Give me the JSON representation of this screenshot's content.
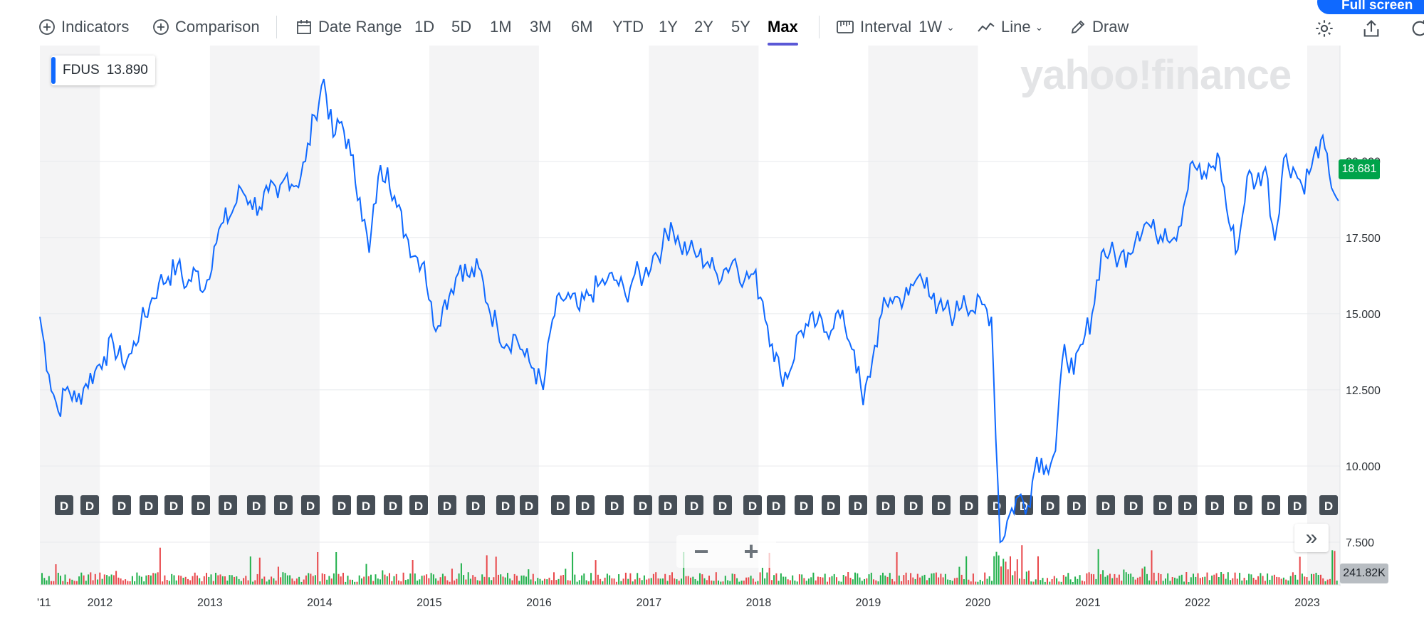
{
  "toolbar": {
    "indicators_label": "Indicators",
    "comparison_label": "Comparison",
    "date_range_label": "Date Range",
    "ranges": [
      "1D",
      "5D",
      "1M",
      "3M",
      "6M",
      "YTD",
      "1Y",
      "2Y",
      "5Y",
      "Max"
    ],
    "active_range": "Max",
    "interval_label": "Interval",
    "interval_value": "1W",
    "chart_type_label": "Line",
    "draw_label": "Draw",
    "fullscreen_label": "Full screen"
  },
  "legend": {
    "symbol": "FDUS",
    "value": "13.890"
  },
  "watermark": "yahoo!finance",
  "current_price_badge": "18.681",
  "volume_badge": "241.82K",
  "dividend_marker_label": "D",
  "colors": {
    "line": "#0f69ff",
    "price_badge": "#00a34a",
    "vol_up": "#22b14c",
    "vol_down": "#e8474a"
  },
  "chart_data": {
    "type": "line",
    "title": "",
    "xlabel": "",
    "ylabel": "",
    "x_start": "2011-06-15",
    "x_end": "2023-04-20",
    "ylim": [
      6.1,
      23.8
    ],
    "y_ticks": [
      7.5,
      10,
      12.5,
      15,
      17.5,
      20
    ],
    "y_tick_labels": [
      "7.500",
      "10.000",
      "12.500",
      "15.000",
      "17.500",
      "20.000"
    ],
    "x_tick_labels": [
      "'11",
      "2012",
      "2013",
      "2014",
      "2015",
      "2016",
      "2017",
      "2018",
      "2019",
      "2020",
      "2021",
      "2022",
      "2023"
    ],
    "x_tick_dates": [
      "2011-06-15",
      "2012-01-01",
      "2013-01-01",
      "2014-01-01",
      "2015-01-01",
      "2016-01-01",
      "2017-01-01",
      "2018-01-01",
      "2019-01-01",
      "2020-01-01",
      "2021-01-01",
      "2022-01-01",
      "2023-01-01"
    ],
    "grid": true,
    "series": [
      {
        "x": [
          "2011-06-15",
          "2011-07-15",
          "2011-08-15",
          "2011-09-15",
          "2011-10-15",
          "2011-11-15",
          "2011-12-15",
          "2012-01-15",
          "2012-02-15",
          "2012-03-15",
          "2012-04-15",
          "2012-05-15",
          "2012-06-15",
          "2012-07-15",
          "2012-08-15",
          "2012-09-15",
          "2012-10-15",
          "2012-11-15",
          "2012-12-15",
          "2013-01-15",
          "2013-02-15",
          "2013-03-15",
          "2013-04-15",
          "2013-05-15",
          "2013-06-15",
          "2013-07-15",
          "2013-08-15",
          "2013-09-15",
          "2013-10-15",
          "2013-11-15",
          "2013-12-15",
          "2014-01-15",
          "2014-02-15",
          "2014-03-15",
          "2014-04-15",
          "2014-05-15",
          "2014-06-15",
          "2014-07-15",
          "2014-08-15",
          "2014-09-15",
          "2014-10-15",
          "2014-11-15",
          "2014-12-15",
          "2015-01-15",
          "2015-02-15",
          "2015-03-15",
          "2015-04-15",
          "2015-05-15",
          "2015-06-15",
          "2015-07-15",
          "2015-08-15",
          "2015-09-15",
          "2015-10-15",
          "2015-11-15",
          "2015-12-15",
          "2016-01-15",
          "2016-02-15",
          "2016-03-15",
          "2016-04-15",
          "2016-05-15",
          "2016-06-15",
          "2016-07-15",
          "2016-08-15",
          "2016-09-15",
          "2016-10-15",
          "2016-11-15",
          "2016-12-15",
          "2017-01-15",
          "2017-02-15",
          "2017-03-15",
          "2017-04-15",
          "2017-05-15",
          "2017-06-15",
          "2017-07-15",
          "2017-08-15",
          "2017-09-15",
          "2017-10-15",
          "2017-11-15",
          "2017-12-15",
          "2018-01-15",
          "2018-02-15",
          "2018-03-15",
          "2018-04-15",
          "2018-05-15",
          "2018-06-15",
          "2018-07-15",
          "2018-08-15",
          "2018-09-15",
          "2018-10-15",
          "2018-11-15",
          "2018-12-15",
          "2019-01-15",
          "2019-02-15",
          "2019-03-15",
          "2019-04-15",
          "2019-05-15",
          "2019-06-15",
          "2019-07-15",
          "2019-08-15",
          "2019-09-15",
          "2019-10-15",
          "2019-11-15",
          "2019-12-15",
          "2020-01-15",
          "2020-02-15",
          "2020-03-15",
          "2020-04-15",
          "2020-05-15",
          "2020-06-15",
          "2020-07-15",
          "2020-08-15",
          "2020-09-15",
          "2020-10-15",
          "2020-11-15",
          "2020-12-15",
          "2021-01-15",
          "2021-02-15",
          "2021-03-15",
          "2021-04-15",
          "2021-05-15",
          "2021-06-15",
          "2021-07-15",
          "2021-08-15",
          "2021-09-15",
          "2021-10-15",
          "2021-11-15",
          "2021-12-15",
          "2022-01-15",
          "2022-02-15",
          "2022-03-15",
          "2022-04-15",
          "2022-05-15",
          "2022-06-15",
          "2022-07-15",
          "2022-08-15",
          "2022-09-15",
          "2022-10-15",
          "2022-11-15",
          "2022-12-15",
          "2023-01-15",
          "2023-02-15",
          "2023-03-15",
          "2023-04-15"
        ],
        "values": [
          14.9,
          13.0,
          11.8,
          12.6,
          12.1,
          12.7,
          13.1,
          13.6,
          14.0,
          13.4,
          13.7,
          14.6,
          15.3,
          16.0,
          16.2,
          16.6,
          15.9,
          16.4,
          15.8,
          17.2,
          18.0,
          18.3,
          19.1,
          18.7,
          18.5,
          19.0,
          18.8,
          19.6,
          19.2,
          20.0,
          21.5,
          22.7,
          20.8,
          21.3,
          20.2,
          18.8,
          17.0,
          19.5,
          19.8,
          18.5,
          17.6,
          16.9,
          16.7,
          14.6,
          15.2,
          15.8,
          16.6,
          16.2,
          16.5,
          15.3,
          14.6,
          14.0,
          14.3,
          13.6,
          13.2,
          12.5,
          14.8,
          15.5,
          15.5,
          15.1,
          15.6,
          15.9,
          16.1,
          16.1,
          15.6,
          16.3,
          16.2,
          16.9,
          17.2,
          18.0,
          17.2,
          17.1,
          16.9,
          16.7,
          16.3,
          16.5,
          16.8,
          16.1,
          16.3,
          15.4,
          14.0,
          13.0,
          13.1,
          14.4,
          14.6,
          14.7,
          14.4,
          15.0,
          14.6,
          13.8,
          12.0,
          13.5,
          15.0,
          15.5,
          15.5,
          15.6,
          16.2,
          16.2,
          15.0,
          15.2,
          14.9,
          15.6,
          15.1,
          15.3,
          14.9,
          7.5,
          8.4,
          9.0,
          8.7,
          10.3,
          10.0,
          10.5,
          14.0,
          13.0,
          14.0,
          15.0,
          17.0,
          17.0,
          16.8,
          17.0,
          17.7,
          18.0,
          17.6,
          17.8,
          17.5,
          18.5,
          20.0,
          19.4,
          19.8,
          20.1,
          18.0,
          17.1,
          19.5,
          19.3,
          19.8,
          17.4,
          20.1,
          19.8,
          19.2,
          19.8,
          20.7,
          19.6,
          18.7
        ]
      }
    ],
    "volume_note": "relative weekly volume bars shown beneath price"
  }
}
